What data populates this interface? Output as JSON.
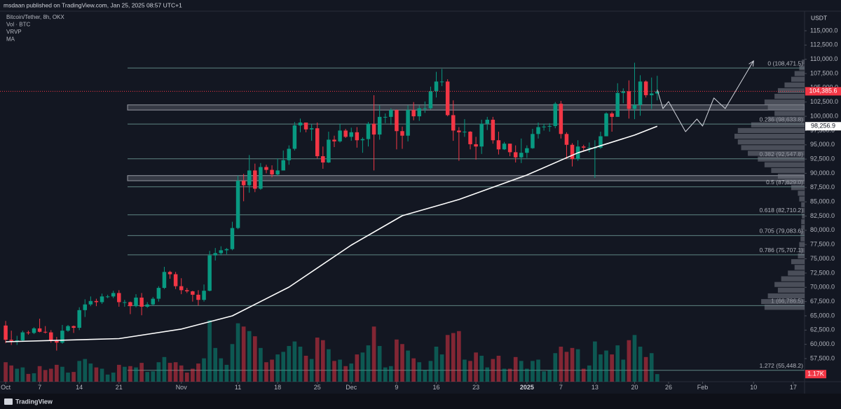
{
  "chart_data": {
    "type": "candlestick",
    "header": "msdaan published on TradingView.com, Jan 25, 2025 08:57 UTC+1",
    "quote_currency": "USDT",
    "footer": "TradingView",
    "up_color": "#089981",
    "down_color": "#f23645",
    "x": [
      "2024-10-01",
      "2024-10-02",
      "2024-10-03",
      "2024-10-04",
      "2024-10-05",
      "2024-10-06",
      "2024-10-07",
      "2024-10-08",
      "2024-10-09",
      "2024-10-10",
      "2024-10-11",
      "2024-10-12",
      "2024-10-13",
      "2024-10-14",
      "2024-10-15",
      "2024-10-16",
      "2024-10-17",
      "2024-10-18",
      "2024-10-19",
      "2024-10-20",
      "2024-10-21",
      "2024-10-22",
      "2024-10-23",
      "2024-10-24",
      "2024-10-25",
      "2024-10-26",
      "2024-10-27",
      "2024-10-28",
      "2024-10-29",
      "2024-10-30",
      "2024-10-31",
      "2024-11-01",
      "2024-11-02",
      "2024-11-03",
      "2024-11-04",
      "2024-11-05",
      "2024-11-06",
      "2024-11-07",
      "2024-11-08",
      "2024-11-09",
      "2024-11-10",
      "2024-11-11",
      "2024-11-12",
      "2024-11-13",
      "2024-11-14",
      "2024-11-15",
      "2024-11-16",
      "2024-11-17",
      "2024-11-18",
      "2024-11-19",
      "2024-11-20",
      "2024-11-21",
      "2024-11-22",
      "2024-11-23",
      "2024-11-24",
      "2024-11-25",
      "2024-11-26",
      "2024-11-27",
      "2024-11-28",
      "2024-11-29",
      "2024-11-30",
      "2024-12-01",
      "2024-12-02",
      "2024-12-03",
      "2024-12-04",
      "2024-12-05",
      "2024-12-06",
      "2024-12-07",
      "2024-12-08",
      "2024-12-09",
      "2024-12-10",
      "2024-12-11",
      "2024-12-12",
      "2024-12-13",
      "2024-12-14",
      "2024-12-15",
      "2024-12-16",
      "2024-12-17",
      "2024-12-18",
      "2024-12-19",
      "2024-12-20",
      "2024-12-21",
      "2024-12-22",
      "2024-12-23",
      "2024-12-24",
      "2024-12-25",
      "2024-12-26",
      "2024-12-27",
      "2024-12-28",
      "2024-12-29",
      "2024-12-30",
      "2024-12-31",
      "2025-01-01",
      "2025-01-02",
      "2025-01-03",
      "2025-01-04",
      "2025-01-05",
      "2025-01-06",
      "2025-01-07",
      "2025-01-08",
      "2025-01-09",
      "2025-01-10",
      "2025-01-11",
      "2025-01-12",
      "2025-01-13",
      "2025-01-14",
      "2025-01-15",
      "2025-01-16",
      "2025-01-17",
      "2025-01-18",
      "2025-01-19",
      "2025-01-20",
      "2025-01-21",
      "2025-01-22",
      "2025-01-23",
      "2025-01-24"
    ],
    "ohlc": {
      "name": "Bitcoin/Tether, 8h, OKX",
      "open": [
        63300,
        60800,
        60600,
        60700,
        62100,
        62000,
        62800,
        62200,
        62100,
        60600,
        60300,
        62400,
        63200,
        62900,
        66000,
        67000,
        67600,
        67400,
        68400,
        68400,
        69000,
        67400,
        67400,
        66700,
        68200,
        66600,
        67000,
        68000,
        69900,
        72700,
        72300,
        70200,
        69500,
        69300,
        68700,
        67800,
        69400,
        75600,
        76000,
        76500,
        76700,
        80400,
        88700,
        87900,
        90500,
        87300,
        91100,
        90600,
        89800,
        90500,
        92300,
        94300,
        98400,
        98900,
        97700,
        97900,
        93000,
        91900,
        95900,
        95600,
        97500,
        96400,
        97200,
        95800,
        96000,
        98700,
        96800,
        99900,
        99900,
        101100,
        97400,
        96600,
        101100,
        100000,
        101400,
        101400,
        104400,
        106100,
        106100,
        100200,
        97500,
        97200,
        97300,
        95100,
        94700,
        98700,
        99400,
        95800,
        94200,
        95200,
        93700,
        92800,
        93600,
        94400,
        96900,
        98100,
        98200,
        98300,
        102200,
        96900,
        95000,
        92500,
        94700,
        94500,
        94500,
        94500,
        96500,
        100500,
        99900,
        104100,
        104400,
        101300,
        102000,
        106100,
        103700,
        104000
      ],
      "high": [
        64100,
        62400,
        61500,
        62400,
        62400,
        63000,
        64500,
        63200,
        62500,
        61300,
        63400,
        63400,
        63300,
        66500,
        67900,
        68400,
        68000,
        68900,
        68700,
        69400,
        69500,
        67800,
        67500,
        68800,
        69000,
        67400,
        68300,
        70200,
        73600,
        72900,
        72700,
        71600,
        69900,
        69400,
        69500,
        70500,
        76400,
        76900,
        77200,
        76900,
        81500,
        89600,
        89900,
        93200,
        91700,
        91800,
        91500,
        91400,
        92600,
        94000,
        94900,
        99000,
        99600,
        98700,
        98600,
        98900,
        94700,
        97300,
        96600,
        98700,
        97800,
        98000,
        98100,
        96300,
        99000,
        103700,
        101900,
        100500,
        101400,
        101200,
        98200,
        101900,
        102500,
        101900,
        102600,
        105200,
        107800,
        108300,
        106500,
        102800,
        98100,
        99500,
        97400,
        96400,
        99400,
        99900,
        99900,
        97300,
        95500,
        95200,
        94900,
        96100,
        94900,
        97800,
        98900,
        98700,
        98800,
        102500,
        102700,
        97200,
        95300,
        95800,
        95000,
        95400,
        95800,
        97300,
        100700,
        100800,
        105800,
        104900,
        106300,
        109400,
        107200,
        106300,
        106800,
        107100
      ],
      "low": [
        60200,
        59900,
        59900,
        60500,
        61700,
        61800,
        62100,
        61900,
        60300,
        58900,
        60100,
        62200,
        62000,
        62500,
        64800,
        66700,
        66700,
        67100,
        68100,
        68100,
        66600,
        66600,
        65300,
        66500,
        65100,
        66400,
        66800,
        67500,
        69700,
        71500,
        69700,
        68800,
        69000,
        67500,
        66800,
        67500,
        69300,
        74700,
        75600,
        75800,
        76500,
        80200,
        85100,
        86600,
        86700,
        87100,
        90000,
        89300,
        89600,
        90500,
        91500,
        94000,
        97200,
        97200,
        95700,
        92600,
        90800,
        91800,
        94600,
        95400,
        96200,
        95700,
        94500,
        93600,
        94700,
        90500,
        95900,
        98800,
        98500,
        94200,
        94300,
        95600,
        99300,
        99200,
        100600,
        101200,
        103300,
        105300,
        100000,
        95700,
        92200,
        96400,
        94200,
        92400,
        93400,
        97600,
        95200,
        93300,
        94100,
        93000,
        91900,
        91800,
        92700,
        94300,
        96100,
        97500,
        97300,
        97900,
        96100,
        92500,
        91200,
        92200,
        93800,
        93700,
        89200,
        94300,
        96500,
        97300,
        99900,
        102300,
        99600,
        99500,
        100100,
        103300,
        101300,
        102800
      ],
      "close": [
        60800,
        60600,
        60700,
        62100,
        62000,
        62800,
        62200,
        62100,
        60600,
        60300,
        62400,
        63200,
        62900,
        66000,
        67000,
        67600,
        67400,
        68400,
        68400,
        69000,
        67400,
        67400,
        66700,
        68200,
        66600,
        67000,
        68000,
        69900,
        72700,
        72300,
        70200,
        69500,
        69300,
        68700,
        67800,
        69400,
        75600,
        76000,
        76500,
        76700,
        80400,
        88700,
        87900,
        90500,
        87300,
        91100,
        90600,
        89800,
        90500,
        92300,
        94300,
        98400,
        98900,
        97700,
        97900,
        93000,
        91900,
        95900,
        95600,
        97500,
        96400,
        97200,
        95800,
        96000,
        98700,
        96800,
        99900,
        99900,
        101100,
        97400,
        96600,
        101100,
        100000,
        101400,
        101400,
        104400,
        106100,
        106100,
        100200,
        97500,
        97200,
        97300,
        95100,
        94700,
        98700,
        99400,
        95800,
        94200,
        95200,
        93700,
        92800,
        93600,
        94400,
        96900,
        98100,
        98200,
        98300,
        102200,
        96900,
        95000,
        92500,
        94700,
        94500,
        94500,
        94500,
        96500,
        100500,
        99900,
        104100,
        104400,
        101300,
        102000,
        106100,
        103700,
        104000,
        104385.6
      ]
    },
    "price_label": {
      "value": 104385.6,
      "label": "104,385.6"
    },
    "volume": {
      "name": "Vol · BTC",
      "values": [
        3,
        2.5,
        2,
        2.2,
        1.2,
        1.3,
        2.4,
        1.8,
        2,
        2.6,
        2.3,
        1.4,
        1.5,
        3.2,
        3.5,
        2.8,
        2.2,
        2,
        1.1,
        1.4,
        2.6,
        2.3,
        2.4,
        2.2,
        2.9,
        1.5,
        1.6,
        3,
        3.8,
        2.9,
        3,
        2.5,
        1.4,
        2,
        2.8,
        3.6,
        9.5,
        5.2,
        3.6,
        2.6,
        5.8,
        9,
        8.5,
        7.8,
        7,
        5.2,
        3,
        3.4,
        4.2,
        4.6,
        5.5,
        6.2,
        5.4,
        4,
        3.5,
        6.8,
        6.4,
        5,
        3.2,
        3.4,
        2.4,
        2.8,
        4.2,
        4.5,
        5.6,
        8.5,
        5.5,
        2.2,
        2.4,
        6.5,
        5.8,
        4.8,
        3.6,
        3,
        1.8,
        3.2,
        5.4,
        4.2,
        7.2,
        7.5,
        7.8,
        3.4,
        3.2,
        4.5,
        4,
        2.2,
        3.5,
        4,
        2,
        2,
        3.8,
        3.2,
        2,
        3.2,
        3.4,
        1.6,
        1.8,
        4.4,
        5.4,
        4.6,
        5.2,
        5,
        2,
        2.5,
        6.2,
        4.2,
        4.8,
        4.2,
        5.6,
        3.4,
        6.4,
        7.2,
        5.4,
        3.8,
        4.4,
        1.17
      ],
      "last_label": {
        "value": 1.17,
        "label": "1.17K"
      }
    },
    "volume_profile": {
      "name": "VRVP",
      "color": "#787b86",
      "bins": [
        66000,
        67000,
        68000,
        69000,
        70000,
        71000,
        72000,
        73000,
        74000,
        75000,
        76000,
        77000,
        78000,
        79000,
        80000,
        81000,
        82000,
        83000,
        84000,
        85000,
        86000,
        87000,
        88000,
        89000,
        90000,
        91000,
        92000,
        93000,
        94000,
        95000,
        96000,
        97000,
        98000,
        99000,
        100000,
        101000,
        102000,
        103000,
        104000,
        105000,
        106000,
        107000,
        108000,
        109000,
        110000
      ],
      "values": [
        60,
        65,
        55,
        40,
        45,
        35,
        25,
        15,
        20,
        10,
        8,
        8,
        6,
        6,
        5,
        5,
        4,
        4,
        5,
        8,
        10,
        20,
        30,
        40,
        50,
        60,
        70,
        85,
        95,
        100,
        105,
        100,
        80,
        55,
        45,
        55,
        60,
        45,
        40,
        30,
        20,
        15,
        8,
        4
      ]
    },
    "ma": {
      "name": "MA",
      "color": "#ffffff",
      "x": [
        "2024-10-01",
        "2024-10-21",
        "2024-11-01",
        "2024-11-10",
        "2024-11-20",
        "2024-12-01",
        "2024-12-10",
        "2024-12-20",
        "2025-01-01",
        "2025-01-10",
        "2025-01-20",
        "2025-01-24"
      ],
      "values": [
        60450,
        61000,
        62670,
        65000,
        70040,
        77400,
        82570,
        85400,
        89700,
        93600,
        96700,
        98256.9
      ],
      "last_label": {
        "value": 98256.9,
        "label": "98,256.9"
      }
    },
    "fib_color": "#5f8583",
    "fib_levels": [
      {
        "value": 108471.5,
        "label": "0 (108,471.5)"
      },
      {
        "value": 98633.8,
        "label": "0.236 (98,633.8)"
      },
      {
        "value": 92547.8,
        "label": "0.382 (92,547.8)"
      },
      {
        "value": 87629.0,
        "label": "0.5 (87,629.0)"
      },
      {
        "value": 82710.2,
        "label": "0.618 (82,710.2)"
      },
      {
        "value": 79083.6,
        "label": "0.705 (79,083.6)"
      },
      {
        "value": 75707.1,
        "label": "0.786 (75,707.1)"
      },
      {
        "value": 66786.5,
        "label": "1 (66,786.5)"
      },
      {
        "value": 55448.2,
        "label": "1.272 (55,448.2)"
      }
    ],
    "zones": [
      {
        "low": 101100,
        "high": 102000
      },
      {
        "low": 88700,
        "high": 89600
      }
    ],
    "projection": {
      "color": "#d1d4dc",
      "x": [
        "2025-01-24",
        "2025-01-25",
        "2025-01-26",
        "2025-01-29",
        "2025-01-31",
        "2025-02-01",
        "2025-02-03",
        "2025-02-05",
        "2025-02-10"
      ],
      "values": [
        104680,
        101360,
        102590,
        97310,
        99520,
        98290,
        103210,
        101360,
        109720
      ]
    },
    "xlim": [
      "2024-09-30",
      "2025-02-19"
    ],
    "xticks": [
      {
        "value": "2024-10-01",
        "label": "Oct"
      },
      {
        "value": "2024-10-07",
        "label": "7"
      },
      {
        "value": "2024-10-14",
        "label": "14"
      },
      {
        "value": "2024-10-21",
        "label": "21"
      },
      {
        "value": "2024-11-01",
        "label": "Nov"
      },
      {
        "value": "2024-11-11",
        "label": "11"
      },
      {
        "value": "2024-11-18",
        "label": "18"
      },
      {
        "value": "2024-11-25",
        "label": "25"
      },
      {
        "value": "2024-12-01",
        "label": "Dec"
      },
      {
        "value": "2024-12-09",
        "label": "9"
      },
      {
        "value": "2024-12-16",
        "label": "16"
      },
      {
        "value": "2024-12-23",
        "label": "23"
      },
      {
        "value": "2025-01-01",
        "label": "2025"
      },
      {
        "value": "2025-01-07",
        "label": "7"
      },
      {
        "value": "2025-01-13",
        "label": "13"
      },
      {
        "value": "2025-01-20",
        "label": "20"
      },
      {
        "value": "2025-01-26",
        "label": "26"
      },
      {
        "value": "2025-02-01",
        "label": "Feb"
      },
      {
        "value": "2025-02-10",
        "label": "10"
      },
      {
        "value": "2025-02-17",
        "label": "17"
      }
    ],
    "ylim": [
      53450,
      120400
    ],
    "yticks": [
      {
        "value": 115000,
        "label": "115,000.0"
      },
      {
        "value": 112500,
        "label": "112,500.0"
      },
      {
        "value": 110000,
        "label": "110,000.0"
      },
      {
        "value": 107500,
        "label": "107,500.0"
      },
      {
        "value": 105000,
        "label": "105,000.0"
      },
      {
        "value": 102500,
        "label": "102,500.0"
      },
      {
        "value": 100000,
        "label": "100,000.0"
      },
      {
        "value": 97500,
        "label": "97,500.0"
      },
      {
        "value": 95000,
        "label": "95,000.0"
      },
      {
        "value": 92500,
        "label": "92,500.0"
      },
      {
        "value": 90000,
        "label": "90,000.0"
      },
      {
        "value": 87500,
        "label": "87,500.0"
      },
      {
        "value": 85000,
        "label": "85,000.0"
      },
      {
        "value": 82500,
        "label": "82,500.0"
      },
      {
        "value": 80000,
        "label": "80,000.0"
      },
      {
        "value": 77500,
        "label": "77,500.0"
      },
      {
        "value": 75000,
        "label": "75,000.0"
      },
      {
        "value": 72500,
        "label": "72,500.0"
      },
      {
        "value": 70000,
        "label": "70,000.0"
      },
      {
        "value": 67500,
        "label": "67,500.0"
      },
      {
        "value": 65000,
        "label": "65,000.0"
      },
      {
        "value": 62500,
        "label": "62,500.0"
      },
      {
        "value": 60000,
        "label": "60,000.0"
      },
      {
        "value": 57500,
        "label": "57,500.0"
      }
    ]
  }
}
